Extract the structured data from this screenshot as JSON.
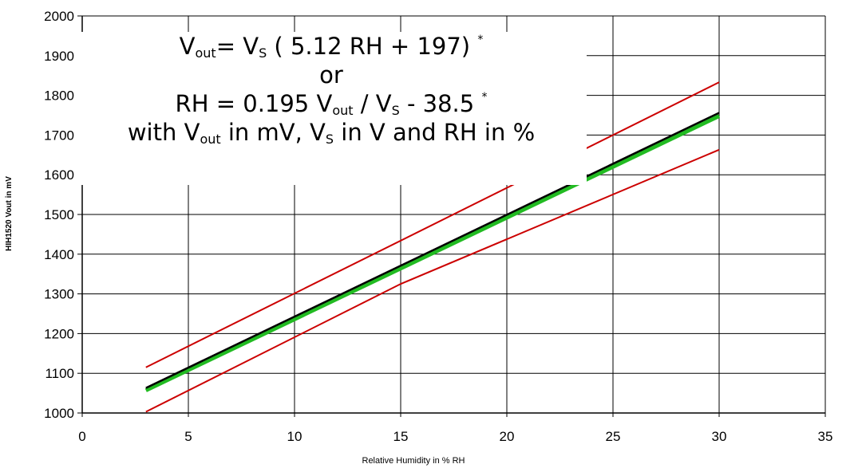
{
  "chart_data": {
    "type": "line",
    "title": "",
    "xlabel": "Relative Humidity in % RH",
    "ylabel": "HIH1520 Vout in mV",
    "xlim": [
      0,
      35
    ],
    "ylim": [
      1000,
      2000
    ],
    "xticks": [
      0,
      5,
      10,
      15,
      20,
      25,
      30,
      35
    ],
    "yticks": [
      1000,
      1100,
      1200,
      1300,
      1400,
      1500,
      1600,
      1700,
      1800,
      1900,
      2000
    ],
    "grid": true,
    "legend": "none",
    "series": [
      {
        "color": "#cc0000",
        "width": 2,
        "x": [
          3,
          30
        ],
        "y": [
          1115,
          1833
        ]
      },
      {
        "color": "#cc0000",
        "width": 2,
        "x": [
          3,
          15,
          30
        ],
        "y": [
          1003,
          1325,
          1663
        ]
      },
      {
        "color": "#22bb22",
        "width": 5,
        "x": [
          3,
          30
        ],
        "y": [
          1057,
          1748
        ]
      },
      {
        "color": "#000000",
        "width": 2.5,
        "x": [
          3,
          30
        ],
        "y": [
          1063,
          1756
        ]
      }
    ],
    "annotation": {
      "v": "V",
      "out": "out",
      "s": "S",
      "star": "*",
      "eq1_mid": "= V",
      "eq1_tail": " ( 5.12 RH + 197) ",
      "or": "or",
      "eq2_head": "RH = 0.195 V",
      "eq2_mid": " / V",
      "eq2_tail": " - 38.5 ",
      "with_head": "with V",
      "with_mid": " in mV, V",
      "with_tail": " in V and RH in %"
    }
  }
}
